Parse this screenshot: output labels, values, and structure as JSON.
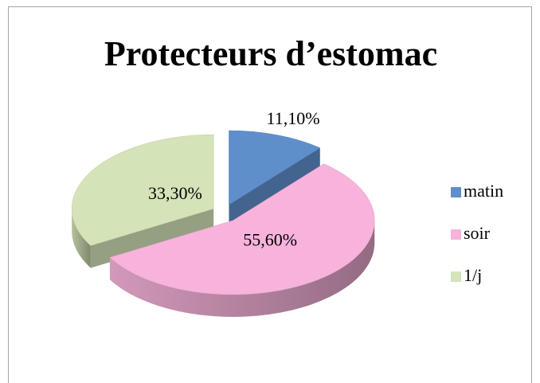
{
  "chart_data": {
    "type": "pie",
    "title": "Protecteurs d’estomac",
    "categories": [
      "matin",
      "soir",
      "1/j"
    ],
    "values": [
      11.1,
      55.6,
      33.3
    ],
    "value_labels": [
      "11,10%",
      "55,60%",
      "33,30%"
    ],
    "colors": [
      "#5f8fcb",
      "#f7b3db",
      "#d5e3b8"
    ],
    "legend": "right",
    "style": "3d-exploded"
  }
}
